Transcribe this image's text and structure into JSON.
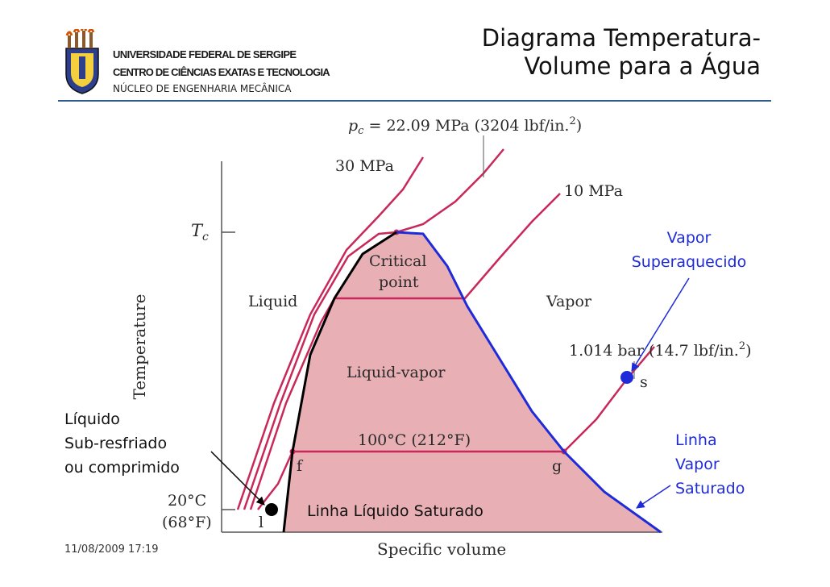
{
  "header": {
    "university": "UNIVERSIDADE FEDERAL DE SERGIPE",
    "center": "CENTRO DE CIÊNCIAS EXATAS E TECNOLOGIA",
    "department": "NÚCLEO DE ENGENHARIA MECÂNICA",
    "title_line1": "Diagrama Temperatura-",
    "title_line2": "Volume para a Água"
  },
  "diagram": {
    "pc_label": "p",
    "pc_sub": "c",
    "pc_value": " = 22.09 MPa (3204 lbf/in.",
    "pc_sup": "2",
    "pc_close": ")",
    "p30": "30 MPa",
    "p10": "10 MPa",
    "tc_label": "T",
    "tc_sub": "c",
    "critical_line1": "Critical",
    "critical_line2": "point",
    "liquid": "Liquid",
    "vapor": "Vapor",
    "liquid_vapor": "Liquid-vapor",
    "p_atm": "1.014 bar (14.7 lbf/in.",
    "p_atm_sup": "2",
    "p_atm_close": ")",
    "s_label": "s",
    "t100": "100°C (212°F)",
    "f_label": "f",
    "g_label": "g",
    "t20_line1": "20°C",
    "t20_line2": "(68°F)",
    "l_label": "l",
    "y_axis": "Temperature",
    "x_axis": "Specific volume"
  },
  "notes": {
    "superheated_line1": "Vapor",
    "superheated_line2": "Superaquecido",
    "subcooled_line1": "Líquido",
    "subcooled_line2": "Sub-resfriado",
    "subcooled_line3": "ou comprimido",
    "sat_vapor_line1": "Linha",
    "sat_vapor_line2": "Vapor",
    "sat_vapor_line3": "Saturado",
    "sat_liquid": "Linha Líquido Saturado"
  },
  "footer": {
    "date": "11/08/2009 17:19"
  },
  "colors": {
    "dome_fill": "#e8b0b4",
    "isobar": "#c8285a",
    "sat_vapor_line": "#1f2bd8",
    "sat_liquid_line": "#000000",
    "note_blue": "#1f2bd8",
    "header_rule": "#2e5d8e"
  }
}
